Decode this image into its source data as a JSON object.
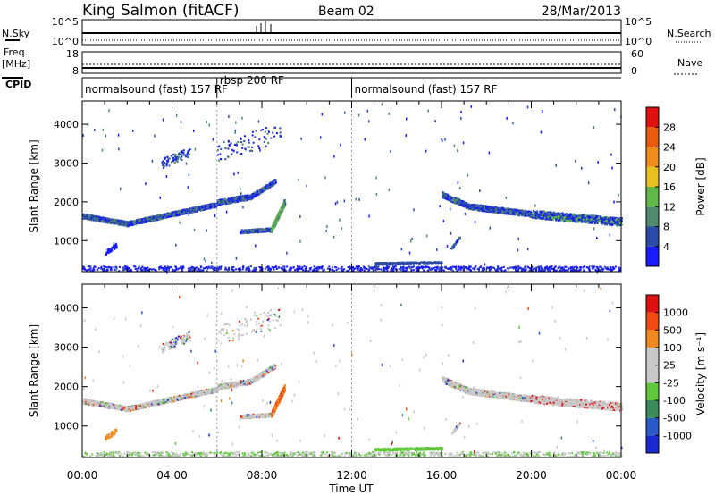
{
  "header": {
    "station": "King Salmon (fitACF)",
    "beam": "Beam 02",
    "date": "28/Mar/2013"
  },
  "top_panels": {
    "nsky_label": "N.Sky",
    "nsearch_label": "N.Search",
    "freq_label": "Freq.",
    "freq_unit": "[MHz]",
    "nave_label": "Nave",
    "cpid_label": "CPID",
    "noise_ticks": [
      "10^5",
      "10^0"
    ],
    "noise_ticks_right": [
      "10^5",
      "10^0"
    ],
    "freq_ticks": [
      "18",
      "8"
    ],
    "nave_ticks": [
      "60",
      "0"
    ]
  },
  "cpid": {
    "segments": [
      {
        "label": "normalsound (fast) 157 RF",
        "start": 0,
        "end": 6
      },
      {
        "label": "rbsp 200 RF",
        "start": 6,
        "end": 12
      },
      {
        "label": "normalsound (fast) 157 RF",
        "start": 12,
        "end": 24
      }
    ]
  },
  "colors": {
    "power": [
      "#1a1aff",
      "#2a4aa8",
      "#4f8a70",
      "#5fb848",
      "#e8c020",
      "#f08c1a",
      "#e85a10",
      "#e01010"
    ],
    "velocity": [
      "#e01010",
      "#f04a10",
      "#f08a20",
      "#c8c8c8",
      "#c8c8c8",
      "#5fc83a",
      "#3a8a5a",
      "#2a5ac8",
      "#1a2ad0"
    ]
  },
  "chart_data": [
    {
      "type": "heatmap",
      "quantity": "Power",
      "xlabel": "Time UT",
      "ylabel": "Slant Range [km]",
      "xlim": [
        0,
        24
      ],
      "ylim": [
        200,
        4600
      ],
      "x_ticks": [
        "00:00",
        "04:00",
        "08:00",
        "12:00",
        "16:00",
        "20:00",
        "00:00"
      ],
      "y_ticks": [
        "1000",
        "2000",
        "3000",
        "4000"
      ],
      "colorbar_label": "Power [dB]",
      "colorbar_ticks": [
        "4",
        "8",
        "12",
        "16",
        "20",
        "24",
        "28"
      ],
      "features": [
        {
          "desc": "main band",
          "t": [
            0.0,
            2.0,
            4.0,
            6.0
          ],
          "r": [
            1650,
            1500,
            1700,
            1900
          ]
        },
        {
          "desc": "rising arc",
          "t": [
            6.0,
            7.5,
            8.5
          ],
          "r": [
            2000,
            2200,
            2500
          ]
        },
        {
          "desc": "hook",
          "t": [
            7.0,
            8.5,
            9.0
          ],
          "r": [
            1250,
            1350,
            2000
          ]
        },
        {
          "desc": "late band",
          "t": [
            16.0,
            18.0,
            20.0,
            24.0
          ],
          "r": [
            2000,
            1800,
            1700,
            1500
          ]
        }
      ]
    },
    {
      "type": "heatmap",
      "quantity": "Velocity",
      "xlabel": "Time UT",
      "ylabel": "Slant Range [km]",
      "xlim": [
        0,
        24
      ],
      "ylim": [
        200,
        4600
      ],
      "x_ticks": [
        "00:00",
        "04:00",
        "08:00",
        "12:00",
        "16:00",
        "20:00",
        "00:00"
      ],
      "y_ticks": [
        "1000",
        "2000",
        "3000",
        "4000"
      ],
      "colorbar_label": "Velocity [m s⁻¹]",
      "colorbar_ticks": [
        "1000",
        "500",
        "100",
        "25",
        "-25",
        "-100",
        "-500",
        "-1000"
      ]
    }
  ],
  "axis_footer": {
    "xlabel": "Time UT"
  }
}
